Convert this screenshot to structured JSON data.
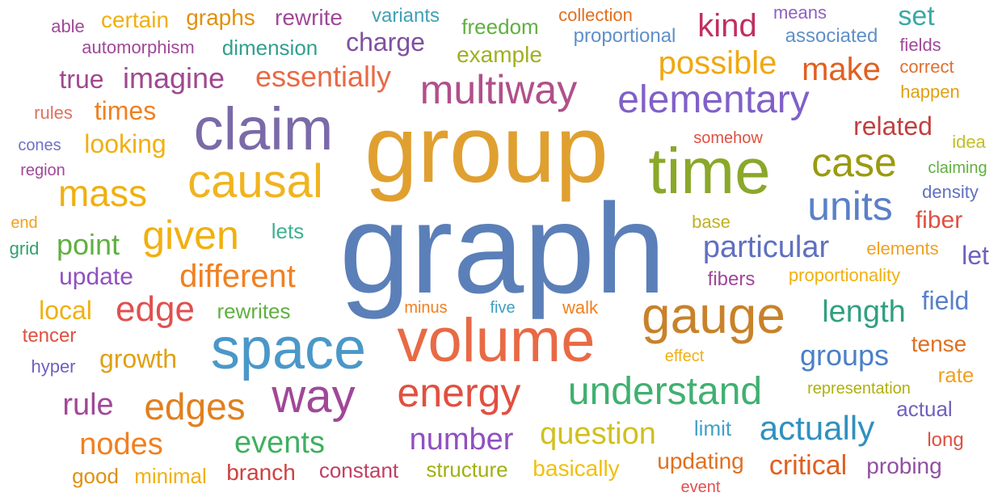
{
  "words": [
    {
      "text": "graph",
      "color": "#5b7fb8"
    },
    {
      "text": "group",
      "color": "#e0a030"
    },
    {
      "text": "claim",
      "color": "#7a6aa8"
    },
    {
      "text": "time",
      "color": "#8aa82a"
    },
    {
      "text": "volume",
      "color": "#e86a45"
    },
    {
      "text": "space",
      "color": "#4a98c8"
    },
    {
      "text": "gauge",
      "color": "#c8822a"
    },
    {
      "text": "causal",
      "color": "#f0b420"
    },
    {
      "text": "multiway",
      "color": "#b0508a"
    },
    {
      "text": "elementary",
      "color": "#8060c8"
    },
    {
      "text": "energy",
      "color": "#e05040"
    },
    {
      "text": "understand",
      "color": "#40b070"
    },
    {
      "text": "way",
      "color": "#a04898"
    },
    {
      "text": "case",
      "color": "#9a9a10"
    },
    {
      "text": "units",
      "color": "#5a80c8"
    },
    {
      "text": "mass",
      "color": "#f0b010"
    },
    {
      "text": "given",
      "color": "#f0b010"
    },
    {
      "text": "edges",
      "color": "#e08020"
    },
    {
      "text": "edge",
      "color": "#e05050"
    },
    {
      "text": "possible",
      "color": "#f0a810"
    },
    {
      "text": "kind",
      "color": "#c03060"
    },
    {
      "text": "make",
      "color": "#e06020"
    },
    {
      "text": "particular",
      "color": "#6070c0"
    },
    {
      "text": "different",
      "color": "#f08020"
    },
    {
      "text": "essentially",
      "color": "#e86a45"
    },
    {
      "text": "imagine",
      "color": "#a04890"
    },
    {
      "text": "true",
      "color": "#a04890"
    },
    {
      "text": "point",
      "color": "#60b040"
    },
    {
      "text": "actually",
      "color": "#3090c0"
    },
    {
      "text": "question",
      "color": "#d0c020"
    },
    {
      "text": "number",
      "color": "#9050c0"
    },
    {
      "text": "events",
      "color": "#40b060"
    },
    {
      "text": "nodes",
      "color": "#f08020"
    },
    {
      "text": "rule",
      "color": "#a04898"
    },
    {
      "text": "length",
      "color": "#30a080"
    },
    {
      "text": "groups",
      "color": "#4a80c8"
    },
    {
      "text": "related",
      "color": "#c04040"
    },
    {
      "text": "set",
      "color": "#3aa8a8"
    },
    {
      "text": "charge",
      "color": "#8050a0"
    },
    {
      "text": "example",
      "color": "#a0b020"
    },
    {
      "text": "growth",
      "color": "#e0a010"
    },
    {
      "text": "local",
      "color": "#f0b010"
    },
    {
      "text": "critical",
      "color": "#e06020"
    },
    {
      "text": "times",
      "color": "#f08020"
    },
    {
      "text": "looking",
      "color": "#f0b010"
    },
    {
      "text": "field",
      "color": "#5a80c8"
    },
    {
      "text": "fiber",
      "color": "#e05040"
    },
    {
      "text": "let",
      "color": "#7060c0"
    },
    {
      "text": "graphs",
      "color": "#e09010"
    },
    {
      "text": "rewrite",
      "color": "#a04898"
    },
    {
      "text": "certain",
      "color": "#f0b010"
    },
    {
      "text": "variants",
      "color": "#40a0b8"
    },
    {
      "text": "dimension",
      "color": "#30a090"
    },
    {
      "text": "freedom",
      "color": "#60b040"
    },
    {
      "text": "proportional",
      "color": "#6090c8"
    },
    {
      "text": "associated",
      "color": "#6090c8"
    },
    {
      "text": "means",
      "color": "#9060c0"
    },
    {
      "text": "collection",
      "color": "#e07020"
    },
    {
      "text": "automorphism",
      "color": "#a04898"
    },
    {
      "text": "able",
      "color": "#a04898"
    },
    {
      "text": "fields",
      "color": "#a04898"
    },
    {
      "text": "correct",
      "color": "#e07030"
    },
    {
      "text": "happen",
      "color": "#e0a010"
    },
    {
      "text": "rules",
      "color": "#e07060"
    },
    {
      "text": "cones",
      "color": "#7070c8"
    },
    {
      "text": "region",
      "color": "#a04898"
    },
    {
      "text": "somehow",
      "color": "#e05040"
    },
    {
      "text": "idea",
      "color": "#c0c020"
    },
    {
      "text": "claiming",
      "color": "#60b040"
    },
    {
      "text": "density",
      "color": "#6070c0"
    },
    {
      "text": "end",
      "color": "#f0a020"
    },
    {
      "text": "grid",
      "color": "#30a070"
    },
    {
      "text": "lets",
      "color": "#40b090"
    },
    {
      "text": "update",
      "color": "#9050c0"
    },
    {
      "text": "base",
      "color": "#c0b020"
    },
    {
      "text": "elements",
      "color": "#f0a020"
    },
    {
      "text": "fibers",
      "color": "#a04898"
    },
    {
      "text": "proportionality",
      "color": "#f0b010"
    },
    {
      "text": "rewrites",
      "color": "#60b040"
    },
    {
      "text": "minus",
      "color": "#f08020"
    },
    {
      "text": "five",
      "color": "#40a0c0"
    },
    {
      "text": "walk",
      "color": "#f08020"
    },
    {
      "text": "tencer",
      "color": "#e05040"
    },
    {
      "text": "hyper",
      "color": "#7060c0"
    },
    {
      "text": "effect",
      "color": "#f0b010"
    },
    {
      "text": "tense",
      "color": "#e07020"
    },
    {
      "text": "rate",
      "color": "#f0a020"
    },
    {
      "text": "representation",
      "color": "#b0b010"
    },
    {
      "text": "actual",
      "color": "#7060c0"
    },
    {
      "text": "limit",
      "color": "#40a0c8"
    },
    {
      "text": "long",
      "color": "#e05040"
    },
    {
      "text": "good",
      "color": "#e09010"
    },
    {
      "text": "minimal",
      "color": "#f0b010"
    },
    {
      "text": "branch",
      "color": "#d04040"
    },
    {
      "text": "constant",
      "color": "#c04060"
    },
    {
      "text": "structure",
      "color": "#a0b010"
    },
    {
      "text": "basically",
      "color": "#f0c010"
    },
    {
      "text": "updating",
      "color": "#e07020"
    },
    {
      "text": "probing",
      "color": "#9050a0"
    },
    {
      "text": "event",
      "color": "#e05050"
    }
  ]
}
